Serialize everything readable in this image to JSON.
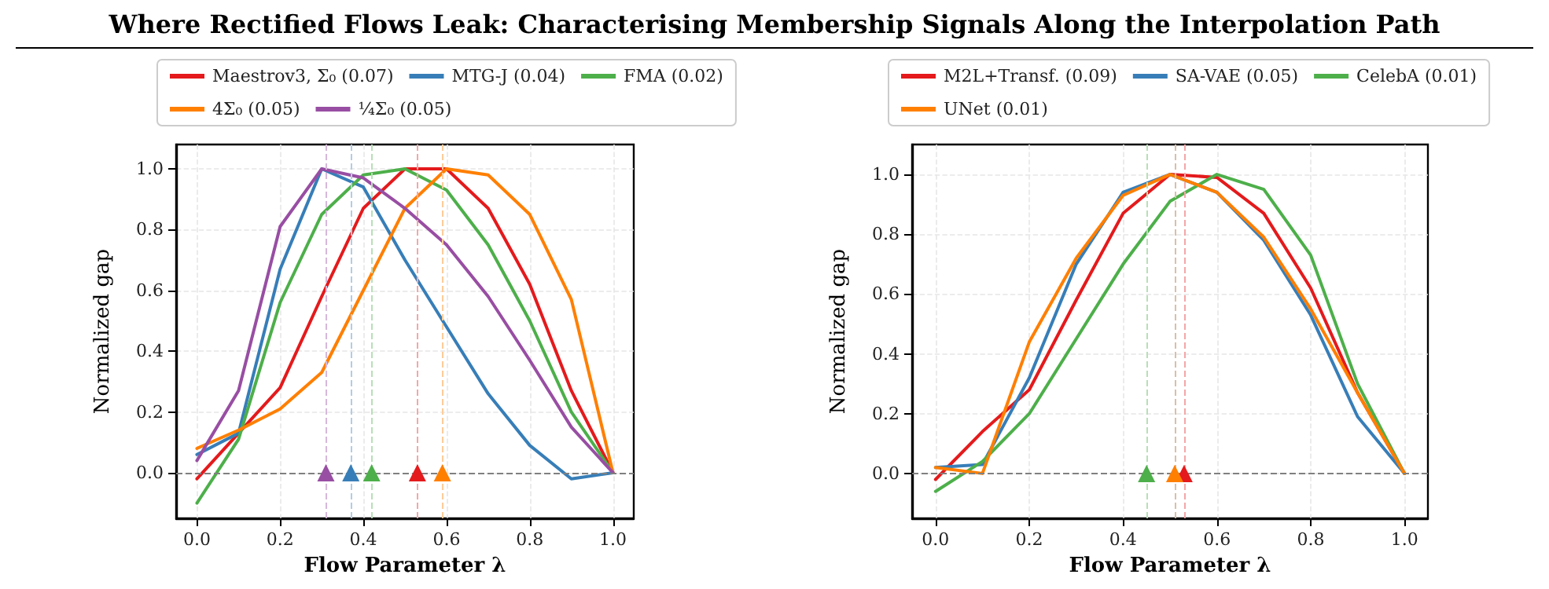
{
  "chart_data": [
    {
      "type": "line",
      "title": "Where Rectified Flows Leak: Characterising Membership Signals Along the Interpolation Path",
      "xlabel": "Flow Parameter λ",
      "ylabel": "Normalized gap",
      "x": [
        0,
        0.1,
        0.2,
        0.3,
        0.4,
        0.5,
        0.6,
        0.7,
        0.8,
        0.9,
        1.0
      ],
      "xlim": [
        -0.05,
        1.05
      ],
      "ylim": [
        -0.15,
        1.08
      ],
      "xticks": [
        {
          "value": 0,
          "label": "0.0"
        },
        {
          "value": 0.2,
          "label": "0.2"
        },
        {
          "value": 0.4,
          "label": "0.4"
        },
        {
          "value": 0.6,
          "label": "0.6"
        },
        {
          "value": 0.8,
          "label": "0.8"
        },
        {
          "value": 1,
          "label": "1.0"
        }
      ],
      "yticks": [
        {
          "value": 0,
          "label": "0.0"
        },
        {
          "value": 0.2,
          "label": "0.2"
        },
        {
          "value": 0.4,
          "label": "0.4"
        },
        {
          "value": 0.6,
          "label": "0.6"
        },
        {
          "value": 0.8,
          "label": "0.8"
        },
        {
          "value": 1,
          "label": "1.0"
        }
      ],
      "grid": true,
      "legend": "top",
      "marker": "none",
      "line_style": "solid",
      "series": [
        {
          "name": "Maestrov3, Σ₀ (0.07)",
          "color": "#e41a1c",
          "values": [
            -0.02,
            0.13,
            0.28,
            0.58,
            0.87,
            1.0,
            1.0,
            0.87,
            0.62,
            0.27,
            0.0
          ]
        },
        {
          "name": "MTG-J (0.04)",
          "color": "#377eb8",
          "values": [
            0.06,
            0.13,
            0.67,
            1.0,
            0.94,
            0.7,
            0.48,
            0.26,
            0.09,
            -0.02,
            0.0
          ]
        },
        {
          "name": "FMA (0.02)",
          "color": "#4daf4a",
          "values": [
            -0.1,
            0.11,
            0.56,
            0.85,
            0.98,
            1.0,
            0.93,
            0.75,
            0.5,
            0.2,
            0.0
          ]
        },
        {
          "name": "4Σ₀ (0.05)",
          "color": "#ff7f00",
          "values": [
            0.08,
            0.14,
            0.21,
            0.33,
            0.6,
            0.87,
            1.0,
            0.98,
            0.85,
            0.57,
            0.0
          ]
        },
        {
          "name": "¼Σ₀ (0.05)",
          "color": "#984ea3",
          "values": [
            0.04,
            0.27,
            0.81,
            1.0,
            0.97,
            0.87,
            0.75,
            0.58,
            0.37,
            0.15,
            0.0
          ]
        },
        {
          "type": "scatter",
          "marker": "triangle",
          "color": "#e41a1c",
          "x": [
            0.53
          ],
          "values": [
            0
          ]
        },
        {
          "type": "scatter",
          "marker": "triangle",
          "color": "#377eb8",
          "x": [
            0.37
          ],
          "values": [
            0
          ]
        },
        {
          "type": "scatter",
          "marker": "triangle",
          "color": "#4daf4a",
          "x": [
            0.42
          ],
          "values": [
            0
          ]
        },
        {
          "type": "scatter",
          "marker": "triangle",
          "color": "#ff7f00",
          "x": [
            0.59
          ],
          "values": [
            0
          ]
        },
        {
          "type": "scatter",
          "marker": "triangle",
          "color": "#984ea3",
          "x": [
            0.31
          ],
          "values": [
            0
          ]
        }
      ],
      "ref_lines": [
        {
          "axis": "y",
          "value": 0,
          "color": "#808080",
          "line_style": "dashed"
        },
        {
          "axis": "x",
          "value": 0.53,
          "color": "#f4a6a7",
          "line_style": "dashed"
        },
        {
          "axis": "x",
          "value": 0.37,
          "color": "#b3cde4",
          "line_style": "dashed"
        },
        {
          "axis": "x",
          "value": 0.42,
          "color": "#b8dfb7",
          "line_style": "dashed"
        },
        {
          "axis": "x",
          "value": 0.59,
          "color": "#ffcc99",
          "line_style": "dashed"
        },
        {
          "axis": "x",
          "value": 0.31,
          "color": "#d6b8da",
          "line_style": "dashed"
        }
      ]
    },
    {
      "type": "line",
      "xlabel": "Flow Parameter λ",
      "ylabel": "Normalized gap",
      "x": [
        0,
        0.1,
        0.2,
        0.3,
        0.4,
        0.5,
        0.6,
        0.7,
        0.8,
        0.9,
        1.0
      ],
      "xlim": [
        -0.05,
        1.05
      ],
      "ylim": [
        -0.15,
        1.1
      ],
      "xticks": [
        {
          "value": 0,
          "label": "0.0"
        },
        {
          "value": 0.2,
          "label": "0.2"
        },
        {
          "value": 0.4,
          "label": "0.4"
        },
        {
          "value": 0.6,
          "label": "0.6"
        },
        {
          "value": 0.8,
          "label": "0.8"
        },
        {
          "value": 1,
          "label": "1.0"
        }
      ],
      "yticks": [
        {
          "value": 0,
          "label": "0.0"
        },
        {
          "value": 0.2,
          "label": "0.2"
        },
        {
          "value": 0.4,
          "label": "0.4"
        },
        {
          "value": 0.6,
          "label": "0.6"
        },
        {
          "value": 0.8,
          "label": "0.8"
        },
        {
          "value": 1,
          "label": "1.0"
        }
      ],
      "grid": true,
      "legend": "top",
      "marker": "none",
      "line_style": "solid",
      "series": [
        {
          "name": "M2L+Transf. (0.09)",
          "color": "#e41a1c",
          "values": [
            -0.02,
            0.14,
            0.28,
            0.58,
            0.87,
            1.0,
            0.99,
            0.87,
            0.62,
            0.27,
            0.0
          ]
        },
        {
          "name": "SA-VAE (0.05)",
          "color": "#377eb8",
          "values": [
            0.02,
            0.03,
            0.32,
            0.7,
            0.94,
            1.0,
            0.94,
            0.78,
            0.53,
            0.19,
            0.0
          ]
        },
        {
          "name": "CelebA (0.01)",
          "color": "#4daf4a",
          "values": [
            -0.06,
            0.04,
            0.2,
            0.45,
            0.7,
            0.91,
            1.0,
            0.95,
            0.73,
            0.3,
            0.0
          ]
        },
        {
          "name": "UNet (0.01)",
          "color": "#ff7f00",
          "values": [
            0.02,
            0.0,
            0.44,
            0.72,
            0.93,
            1.0,
            0.94,
            0.79,
            0.55,
            0.27,
            0.0
          ]
        },
        {
          "type": "scatter",
          "marker": "triangle",
          "color": "#e41a1c",
          "x": [
            0.53
          ],
          "values": [
            0
          ]
        },
        {
          "type": "scatter",
          "marker": "triangle",
          "color": "#4daf4a",
          "x": [
            0.45
          ],
          "values": [
            0
          ]
        },
        {
          "type": "scatter",
          "marker": "triangle",
          "color": "#ff7f00",
          "x": [
            0.51
          ],
          "values": [
            0
          ]
        }
      ],
      "ref_lines": [
        {
          "axis": "y",
          "value": 0,
          "color": "#808080",
          "line_style": "dashed"
        },
        {
          "axis": "x",
          "value": 0.53,
          "color": "#f4a6a7",
          "line_style": "dashed"
        },
        {
          "axis": "x",
          "value": 0.51,
          "color": "#d9bfa8",
          "line_style": "dashed"
        },
        {
          "axis": "x",
          "value": 0.45,
          "color": "#b8dfb7",
          "line_style": "dashed"
        }
      ]
    }
  ]
}
